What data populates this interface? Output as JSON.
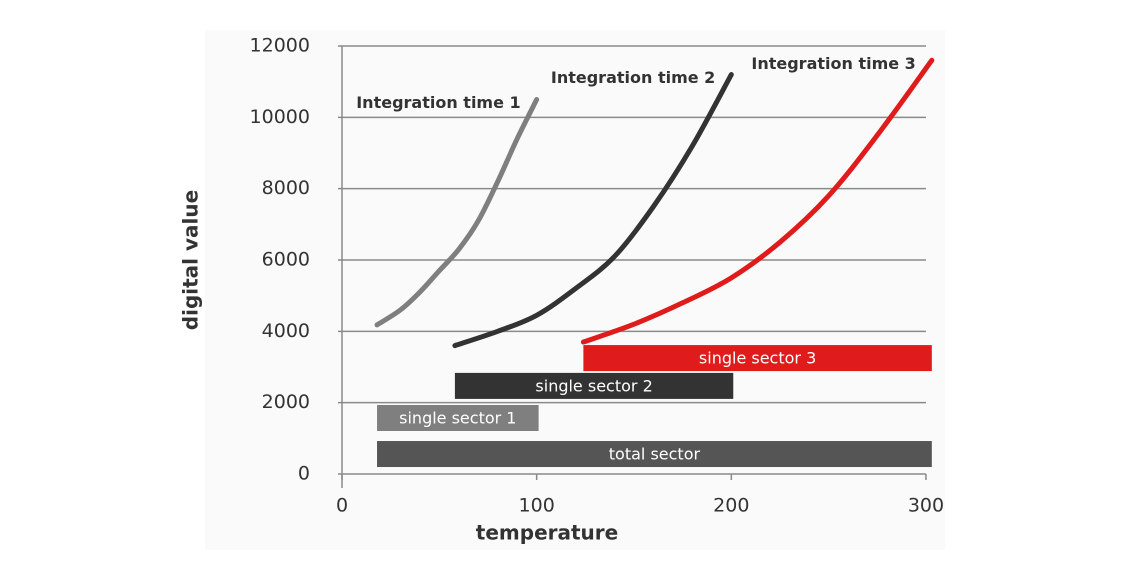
{
  "chart_data": {
    "type": "line",
    "xlabel": "temperature",
    "ylabel": "digital value",
    "xlim": [
      0,
      305
    ],
    "ylim": [
      0,
      12000
    ],
    "xticks": [
      0,
      100,
      200,
      300
    ],
    "yticks": [
      0,
      2000,
      4000,
      6000,
      8000,
      10000,
      12000
    ],
    "grid": true,
    "series": [
      {
        "name": "Integration time 1",
        "color": "#7f7f7f",
        "x": [
          18,
          30,
          40,
          50,
          60,
          70,
          80,
          90,
          100
        ],
        "values": [
          4180,
          4600,
          5100,
          5700,
          6300,
          7100,
          8200,
          9400,
          10500
        ]
      },
      {
        "name": "Integration time 2",
        "color": "#333333",
        "x": [
          58,
          80,
          100,
          120,
          140,
          160,
          180,
          200
        ],
        "values": [
          3600,
          4000,
          4450,
          5200,
          6100,
          7500,
          9200,
          11200
        ]
      },
      {
        "name": "Integration time 3",
        "color": "#e01b1b",
        "x": [
          124,
          150,
          175,
          200,
          225,
          250,
          275,
          303
        ],
        "values": [
          3700,
          4200,
          4800,
          5500,
          6500,
          7800,
          9500,
          11600
        ]
      }
    ],
    "ranges": [
      {
        "label": "total sector",
        "start": 18,
        "end": 303,
        "y": 560,
        "color": "#555555"
      },
      {
        "label": "single sector 1",
        "start": 18,
        "end": 101,
        "y": 1570,
        "color": "#7f7f7f"
      },
      {
        "label": "single sector 2",
        "start": 58,
        "end": 201,
        "y": 2470,
        "color": "#333333"
      },
      {
        "label": "single sector 3",
        "start": 124,
        "end": 303,
        "y": 3250,
        "color": "#e01b1b"
      }
    ]
  }
}
